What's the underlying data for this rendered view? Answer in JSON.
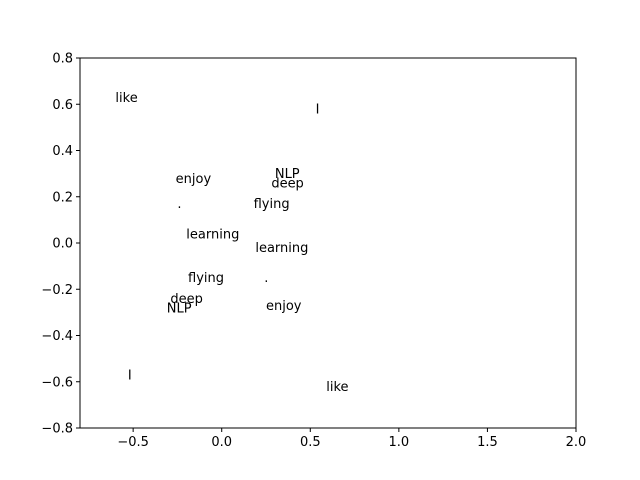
{
  "chart_data": {
    "type": "scatter",
    "title": "",
    "xlabel": "",
    "ylabel": "",
    "xlim": [
      -0.8,
      2.0
    ],
    "ylim": [
      -0.8,
      0.8
    ],
    "xticks": [
      -0.5,
      0.0,
      0.5,
      1.0,
      1.5,
      2.0
    ],
    "yticks": [
      -0.8,
      -0.6,
      -0.4,
      -0.2,
      0.0,
      0.2,
      0.4,
      0.6,
      0.8
    ],
    "xtick_labels": [
      "−0.5",
      "0.0",
      "0.5",
      "1.0",
      "1.5",
      "2.0"
    ],
    "ytick_labels": [
      "−0.8",
      "−0.6",
      "−0.4",
      "−0.2",
      "0.0",
      "0.2",
      "0.4",
      "0.6",
      "0.8"
    ],
    "grid": false,
    "legend": "none",
    "points": [
      {
        "label": "like",
        "x": -0.6,
        "y": 0.63
      },
      {
        "label": "I",
        "x": 0.53,
        "y": 0.58
      },
      {
        "label": "enjoy",
        "x": -0.26,
        "y": 0.28
      },
      {
        "label": "NLP",
        "x": 0.3,
        "y": 0.3
      },
      {
        "label": "deep",
        "x": 0.28,
        "y": 0.26
      },
      {
        "label": ".",
        "x": -0.25,
        "y": 0.17
      },
      {
        "label": "flying",
        "x": 0.18,
        "y": 0.17
      },
      {
        "label": "learning",
        "x": -0.2,
        "y": 0.04
      },
      {
        "label": "learning",
        "x": 0.19,
        "y": -0.02
      },
      {
        "label": "flying",
        "x": -0.19,
        "y": -0.15
      },
      {
        "label": ".",
        "x": 0.24,
        "y": -0.15
      },
      {
        "label": "deep",
        "x": -0.29,
        "y": -0.24
      },
      {
        "label": "NLP",
        "x": -0.31,
        "y": -0.28
      },
      {
        "label": "enjoy",
        "x": 0.25,
        "y": -0.27
      },
      {
        "label": "I",
        "x": -0.53,
        "y": -0.57
      },
      {
        "label": "like",
        "x": 0.59,
        "y": -0.62
      }
    ]
  }
}
